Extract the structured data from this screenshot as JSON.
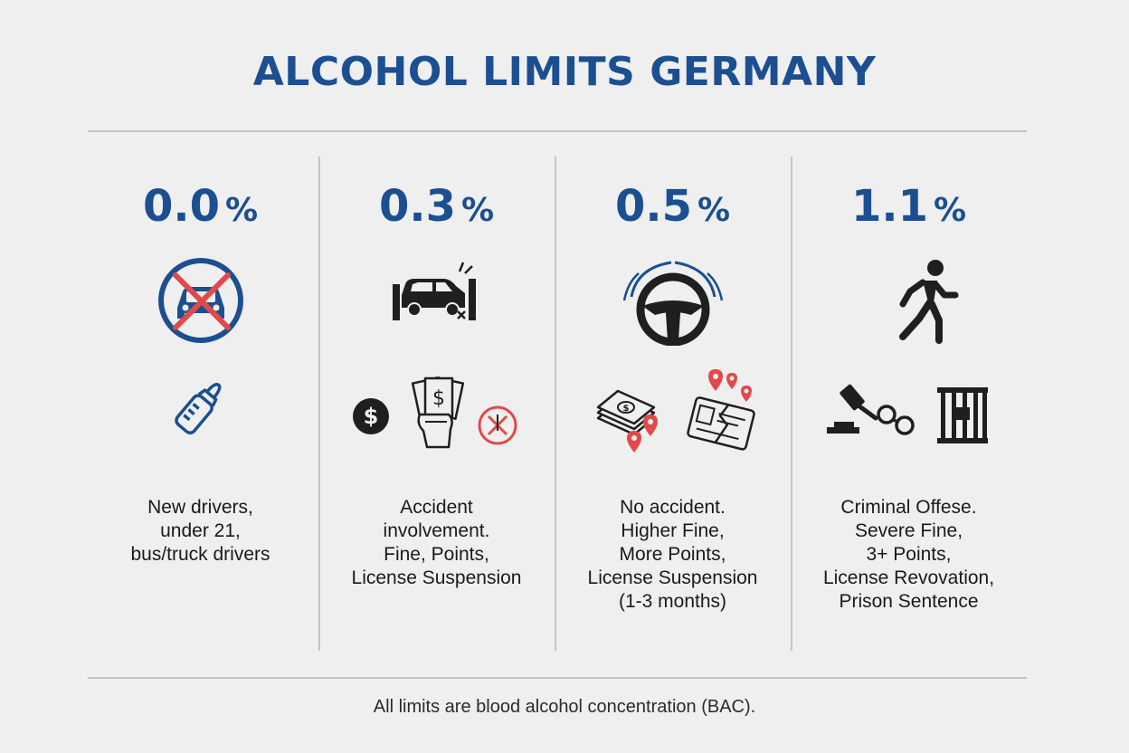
{
  "title": "ALCOHOL LIMITS GERMANY",
  "colors": {
    "accent_blue": "#1b4f91",
    "alert_red": "#e04a4a",
    "icon_dark": "#1f1f1f",
    "background": "#efeff0"
  },
  "columns": [
    {
      "value": "0.0",
      "unit": "%",
      "icons": [
        "no-car-icon",
        "baby-bottle-icon"
      ],
      "lines": [
        "New drivers,",
        "under 21,",
        "bus/truck drivers"
      ]
    },
    {
      "value": "0.3",
      "unit": "%",
      "icons": [
        "car-crash-icon",
        "dollar-coin-icon",
        "cash-in-hand-icon",
        "prohibited-icon"
      ],
      "lines": [
        "Accident",
        "involvement.",
        "Fine, Points,",
        "License Suspension"
      ]
    },
    {
      "value": "0.5",
      "unit": "%",
      "icons": [
        "steering-wheel-icon",
        "money-stack-icon",
        "location-pin-icon",
        "broken-license-icon"
      ],
      "lines": [
        "No accident.",
        "Higher Fine,",
        "More Points,",
        "License Suspension",
        "(1-3 months)"
      ]
    },
    {
      "value": "1.1",
      "unit": "%",
      "icons": [
        "running-person-icon",
        "gavel-icon",
        "handcuffs-icon",
        "prison-bars-icon"
      ],
      "lines": [
        "Criminal Offese.",
        "Severe Fine,",
        "3+ Points,",
        "License Revovation,",
        "Prison Sentence"
      ]
    }
  ],
  "footnote": "All limits are blood alcohol concentration (BAC)."
}
